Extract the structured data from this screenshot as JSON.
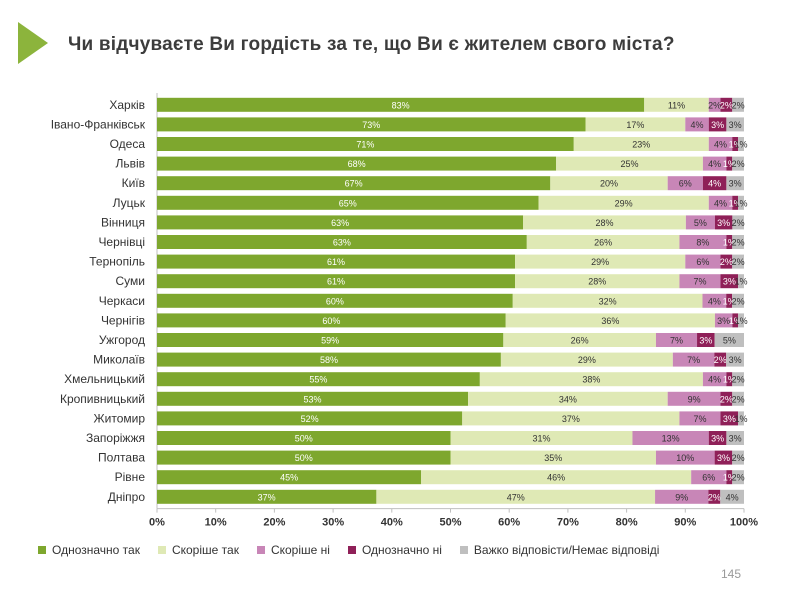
{
  "title": "Чи відчуваєте Ви гордість за те, що Ви є жителем свого міста?",
  "page_number": "145",
  "colors": {
    "accent": "#8cb43c",
    "bar_text": "#ffffff",
    "label_text": "#333333",
    "series": [
      "#7ea72e",
      "#dfe9b5",
      "#c886b7",
      "#8f2058",
      "#bfbfbf"
    ]
  },
  "chart_data": {
    "type": "bar",
    "orientation": "horizontal",
    "stacked": true,
    "title": "Чи відчуваєте Ви гордість за те, що Ви є жителем свого міста?",
    "xlim": [
      0,
      100
    ],
    "x_ticks": [
      "0%",
      "10%",
      "20%",
      "30%",
      "40%",
      "50%",
      "60%",
      "70%",
      "80%",
      "90%",
      "100%"
    ],
    "legend_position": "bottom",
    "categories": [
      "Харків",
      "Івано-Франківськ",
      "Одеса",
      "Львів",
      "Київ",
      "Луцьк",
      "Вінниця",
      "Чернівці",
      "Тернопіль",
      "Суми",
      "Черкаси",
      "Чернігів",
      "Ужгород",
      "Миколаїв",
      "Хмельницький",
      "Кропивницький",
      "Житомир",
      "Запоріжжя",
      "Полтава",
      "Рівне",
      "Дніпро"
    ],
    "series": [
      {
        "name": "Однозначно так",
        "values": [
          83,
          73,
          71,
          68,
          67,
          65,
          63,
          63,
          61,
          61,
          60,
          60,
          59,
          58,
          55,
          53,
          52,
          50,
          50,
          45,
          37
        ]
      },
      {
        "name": "Скоріше так",
        "values": [
          11,
          17,
          23,
          25,
          20,
          29,
          28,
          26,
          29,
          28,
          32,
          36,
          26,
          29,
          38,
          34,
          37,
          31,
          35,
          46,
          47
        ]
      },
      {
        "name": "Скоріше ні",
        "values": [
          2,
          4,
          4,
          4,
          6,
          4,
          5,
          8,
          6,
          7,
          4,
          3,
          7,
          7,
          4,
          9,
          7,
          13,
          10,
          6,
          9
        ]
      },
      {
        "name": "Однозначно ні",
        "values": [
          2,
          3,
          1,
          1,
          4,
          1,
          3,
          1,
          2,
          3,
          1,
          1,
          3,
          2,
          1,
          2,
          3,
          3,
          3,
          1,
          2
        ]
      },
      {
        "name": "Важко відповісти/Немає відповіді",
        "values": [
          2,
          3,
          1,
          2,
          3,
          1,
          2,
          2,
          2,
          1,
          2,
          1,
          5,
          3,
          2,
          2,
          1,
          3,
          2,
          2,
          4
        ]
      }
    ]
  }
}
